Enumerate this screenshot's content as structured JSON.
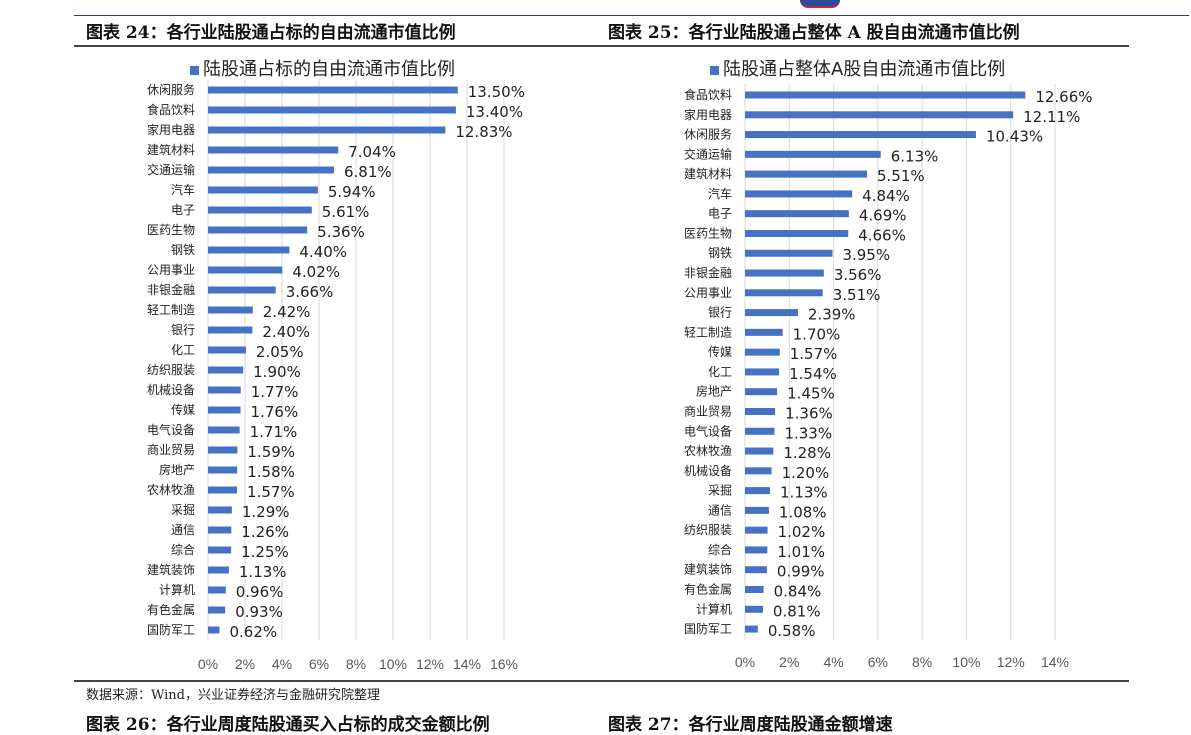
{
  "header": {
    "left_title": "图表 24：各行业陆股通占标的自由流通市值比例",
    "right_title": "图表 25：各行业陆股通占整体 A 股自由流通市值比例"
  },
  "footer": {
    "source": "数据来源：Wind，兴业证券经济与金融研究院整理",
    "next_left": "图表 26：各行业周度陆股通买入占标的成交金额比例",
    "next_right": "图表 27：各行业周度陆股通金额增速"
  },
  "chart_data": [
    {
      "type": "bar",
      "orientation": "horizontal",
      "color": "#4472C4",
      "legend": "陆股通占标的自由流通市值比例",
      "legend_position": "top",
      "grid": true,
      "xlim": [
        0,
        16
      ],
      "xticks": [
        "0%",
        "2%",
        "4%",
        "6%",
        "8%",
        "10%",
        "12%",
        "14%",
        "16%"
      ],
      "categories": [
        "休闲服务",
        "食品饮料",
        "家用电器",
        "建筑材料",
        "交通运输",
        "汽车",
        "电子",
        "医药生物",
        "钢铁",
        "公用事业",
        "非银金融",
        "轻工制造",
        "银行",
        "化工",
        "纺织服装",
        "机械设备",
        "传媒",
        "电气设备",
        "商业贸易",
        "房地产",
        "农林牧渔",
        "采掘",
        "通信",
        "综合",
        "建筑装饰",
        "计算机",
        "有色金属",
        "国防军工"
      ],
      "values": [
        13.5,
        13.4,
        12.83,
        7.04,
        6.81,
        5.94,
        5.61,
        5.36,
        4.4,
        4.02,
        3.66,
        2.42,
        2.4,
        2.05,
        1.9,
        1.77,
        1.76,
        1.71,
        1.59,
        1.58,
        1.57,
        1.29,
        1.26,
        1.25,
        1.13,
        0.96,
        0.93,
        0.62
      ],
      "labels": [
        "13.50%",
        "13.40%",
        "12.83%",
        "7.04%",
        "6.81%",
        "5.94%",
        "5.61%",
        "5.36%",
        "4.40%",
        "4.02%",
        "3.66%",
        "2.42%",
        "2.40%",
        "2.05%",
        "1.90%",
        "1.77%",
        "1.76%",
        "1.71%",
        "1.59%",
        "1.58%",
        "1.57%",
        "1.29%",
        "1.26%",
        "1.25%",
        "1.13%",
        "0.96%",
        "0.93%",
        "0.62%"
      ]
    },
    {
      "type": "bar",
      "orientation": "horizontal",
      "color": "#4472C4",
      "legend": "陆股通占整体A股自由流通市值比例",
      "legend_position": "top",
      "grid": true,
      "xlim": [
        0,
        14
      ],
      "xticks": [
        "0%",
        "2%",
        "4%",
        "6%",
        "8%",
        "10%",
        "12%",
        "14%"
      ],
      "categories": [
        "食品饮料",
        "家用电器",
        "休闲服务",
        "交通运输",
        "建筑材料",
        "汽车",
        "电子",
        "医药生物",
        "钢铁",
        "非银金融",
        "公用事业",
        "银行",
        "轻工制造",
        "传媒",
        "化工",
        "房地产",
        "商业贸易",
        "电气设备",
        "农林牧渔",
        "机械设备",
        "采掘",
        "通信",
        "纺织服装",
        "综合",
        "建筑装饰",
        "有色金属",
        "计算机",
        "国防军工"
      ],
      "values": [
        12.66,
        12.11,
        10.43,
        6.13,
        5.51,
        4.84,
        4.69,
        4.66,
        3.95,
        3.56,
        3.51,
        2.39,
        1.7,
        1.57,
        1.54,
        1.45,
        1.36,
        1.33,
        1.28,
        1.2,
        1.13,
        1.08,
        1.02,
        1.01,
        0.99,
        0.84,
        0.81,
        0.58
      ],
      "labels": [
        "12.66%",
        "12.11%",
        "10.43%",
        "6.13%",
        "5.51%",
        "4.84%",
        "4.69%",
        "4.66%",
        "3.95%",
        "3.56%",
        "3.51%",
        "2.39%",
        "1.70%",
        "1.57%",
        "1.54%",
        "1.45%",
        "1.36%",
        "1.33%",
        "1.28%",
        "1.20%",
        "1.13%",
        "1.08%",
        "1.02%",
        "1.01%",
        "0.99%",
        "0.84%",
        "0.81%",
        "0.58%"
      ]
    }
  ]
}
